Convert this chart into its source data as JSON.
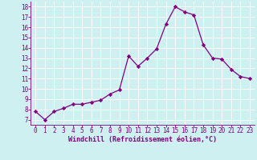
{
  "x": [
    0,
    1,
    2,
    3,
    4,
    5,
    6,
    7,
    8,
    9,
    10,
    11,
    12,
    13,
    14,
    15,
    16,
    17,
    18,
    19,
    20,
    21,
    22,
    23
  ],
  "y": [
    7.8,
    7.0,
    7.8,
    8.1,
    8.5,
    8.5,
    8.7,
    8.9,
    9.5,
    9.9,
    13.2,
    12.2,
    13.0,
    13.9,
    16.3,
    18.0,
    17.5,
    17.2,
    14.3,
    13.0,
    12.9,
    11.9,
    11.2,
    11.0
  ],
  "line_color": "#800080",
  "marker": "D",
  "marker_size": 2.2,
  "bg_color": "#cff0f0",
  "grid_color": "#ffffff",
  "xlabel": "Windchill (Refroidissement éolien,°C)",
  "xlabel_color": "#800080",
  "tick_color": "#800080",
  "ylim": [
    6.5,
    18.5
  ],
  "xlim": [
    -0.5,
    23.5
  ],
  "yticks": [
    7,
    8,
    9,
    10,
    11,
    12,
    13,
    14,
    15,
    16,
    17,
    18
  ],
  "xticks": [
    0,
    1,
    2,
    3,
    4,
    5,
    6,
    7,
    8,
    9,
    10,
    11,
    12,
    13,
    14,
    15,
    16,
    17,
    18,
    19,
    20,
    21,
    22,
    23
  ],
  "tick_fontsize": 5.5,
  "xlabel_fontsize": 6.0
}
